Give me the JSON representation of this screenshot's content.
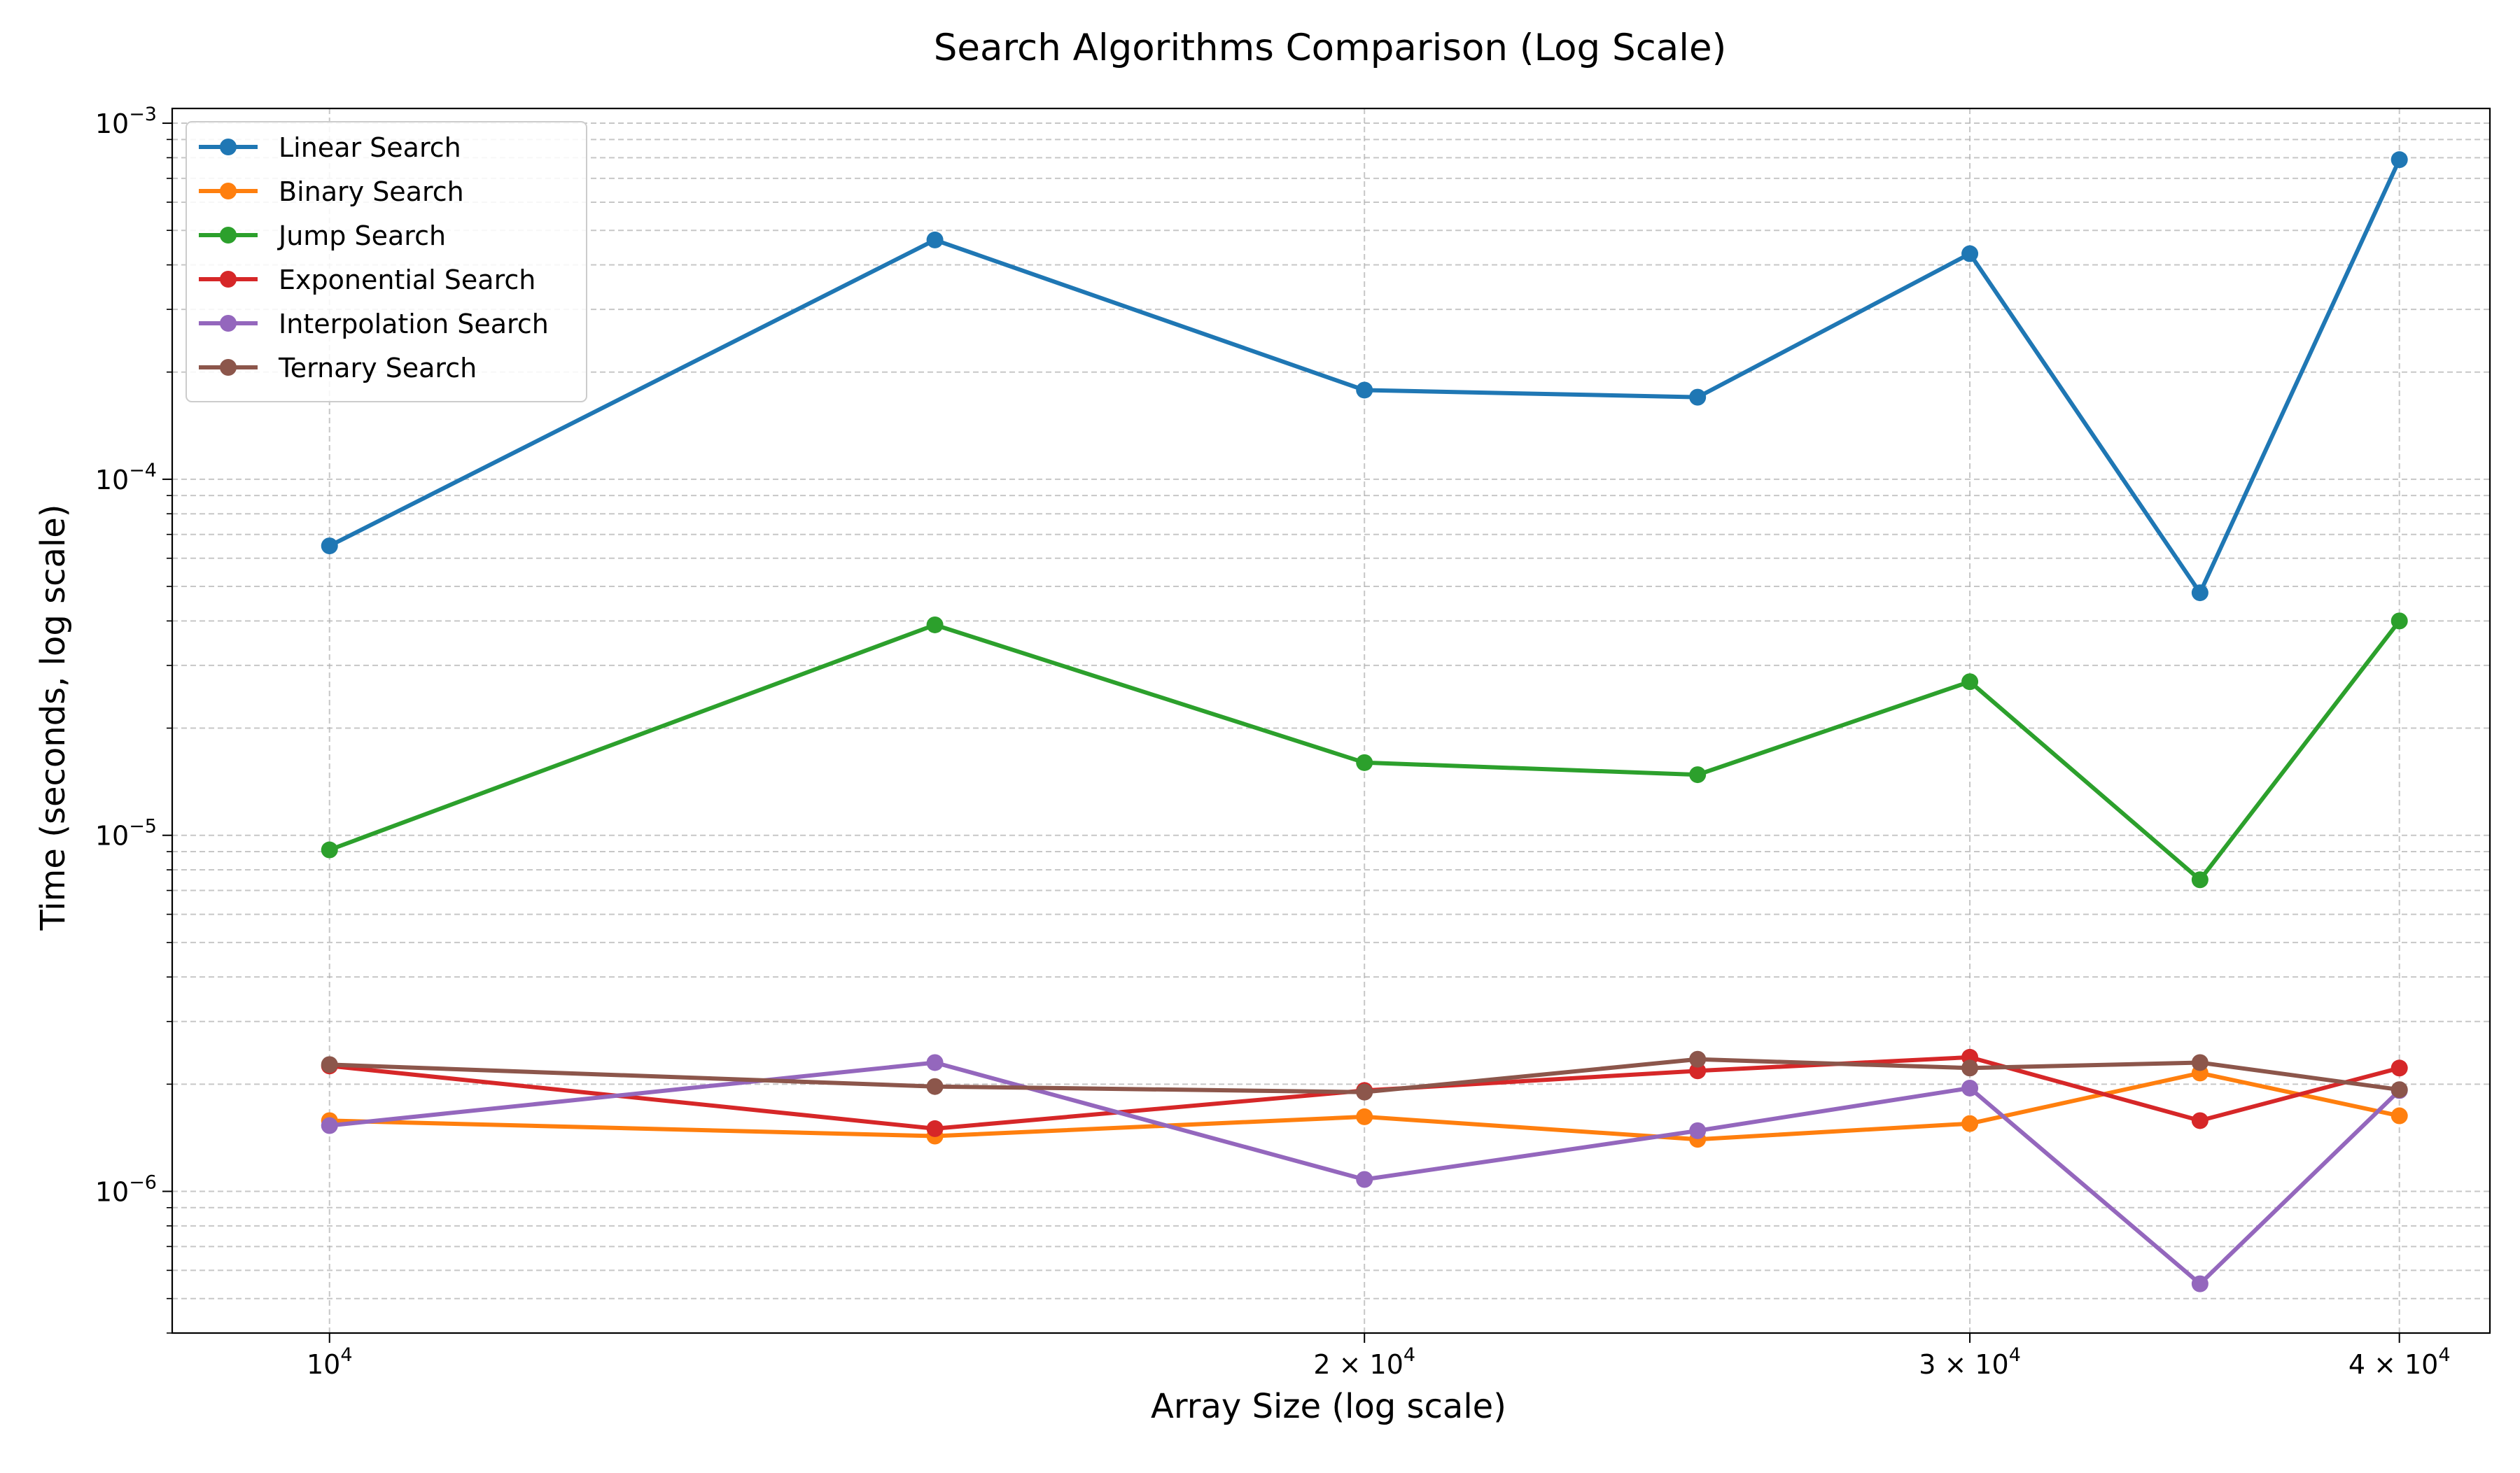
{
  "chart_data": {
    "type": "line",
    "title": "Search Algorithms Comparison (Log Scale)",
    "xlabel": "Array Size (log scale)",
    "ylabel": "Time (seconds, log scale)",
    "xscale": "log",
    "yscale": "log",
    "x": [
      10000,
      15000,
      20000,
      25000,
      30000,
      35000,
      40000
    ],
    "xlim": [
      9000,
      42500
    ],
    "ylim": [
      4e-07,
      0.0011
    ],
    "grid": true,
    "legend_position": "top-left",
    "x_ticks": [
      {
        "value": 10000,
        "base": "10",
        "exp": "4"
      },
      {
        "value": 20000,
        "base": "2 × 10",
        "exp": "4"
      },
      {
        "value": 30000,
        "base": "3 × 10",
        "exp": "4"
      },
      {
        "value": 40000,
        "base": "4 × 10",
        "exp": "4"
      }
    ],
    "y_ticks": [
      {
        "value": 1e-06,
        "base": "10",
        "exp": "−6"
      },
      {
        "value": 1e-05,
        "base": "10",
        "exp": "−5"
      },
      {
        "value": 0.0001,
        "base": "10",
        "exp": "−4"
      },
      {
        "value": 0.001,
        "base": "10",
        "exp": "−3"
      }
    ],
    "series": [
      {
        "name": "Linear Search",
        "color": "#1f77b4",
        "values": [
          6.5e-05,
          0.00047,
          0.000178,
          0.00017,
          0.00043,
          4.8e-05,
          0.00079
        ]
      },
      {
        "name": "Binary Search",
        "color": "#ff7f0e",
        "values": [
          1.58e-06,
          1.43e-06,
          1.62e-06,
          1.4e-06,
          1.55e-06,
          2.15e-06,
          1.63e-06
        ]
      },
      {
        "name": "Jump Search",
        "color": "#2ca02c",
        "values": [
          9.1e-06,
          3.9e-05,
          1.6e-05,
          1.48e-05,
          2.7e-05,
          7.5e-06,
          4e-05
        ]
      },
      {
        "name": "Exponential Search",
        "color": "#d62728",
        "values": [
          2.25e-06,
          1.5e-06,
          1.92e-06,
          2.18e-06,
          2.38e-06,
          1.58e-06,
          2.22e-06
        ]
      },
      {
        "name": "Interpolation Search",
        "color": "#9467bd",
        "values": [
          1.53e-06,
          2.3e-06,
          1.08e-06,
          1.48e-06,
          1.95e-06,
          5.5e-07,
          1.92e-06
        ]
      },
      {
        "name": "Ternary Search",
        "color": "#8c564b",
        "values": [
          2.27e-06,
          1.97e-06,
          1.9e-06,
          2.35e-06,
          2.22e-06,
          2.3e-06,
          1.93e-06
        ]
      }
    ]
  }
}
